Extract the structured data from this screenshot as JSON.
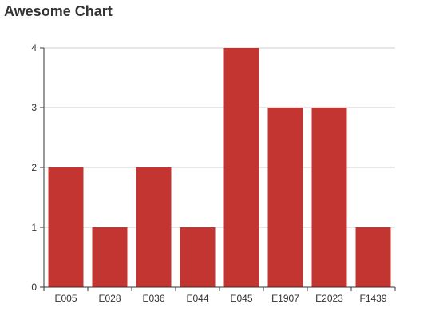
{
  "title": "Awesome Chart",
  "colors": {
    "bar": "#c23531",
    "grid": "#cccccc",
    "axis": "#333333",
    "text": "#333333"
  },
  "chart_data": {
    "type": "bar",
    "title": "Awesome Chart",
    "categories": [
      "E005",
      "E028",
      "E036",
      "E044",
      "E045",
      "E1907",
      "E2023",
      "F1439"
    ],
    "values": [
      2,
      1,
      2,
      1,
      4,
      3,
      3,
      1
    ],
    "xlabel": "",
    "ylabel": "",
    "ylim": [
      0,
      4
    ],
    "yticks": [
      0,
      1,
      2,
      3,
      4
    ],
    "grid": true,
    "legend": "none"
  }
}
